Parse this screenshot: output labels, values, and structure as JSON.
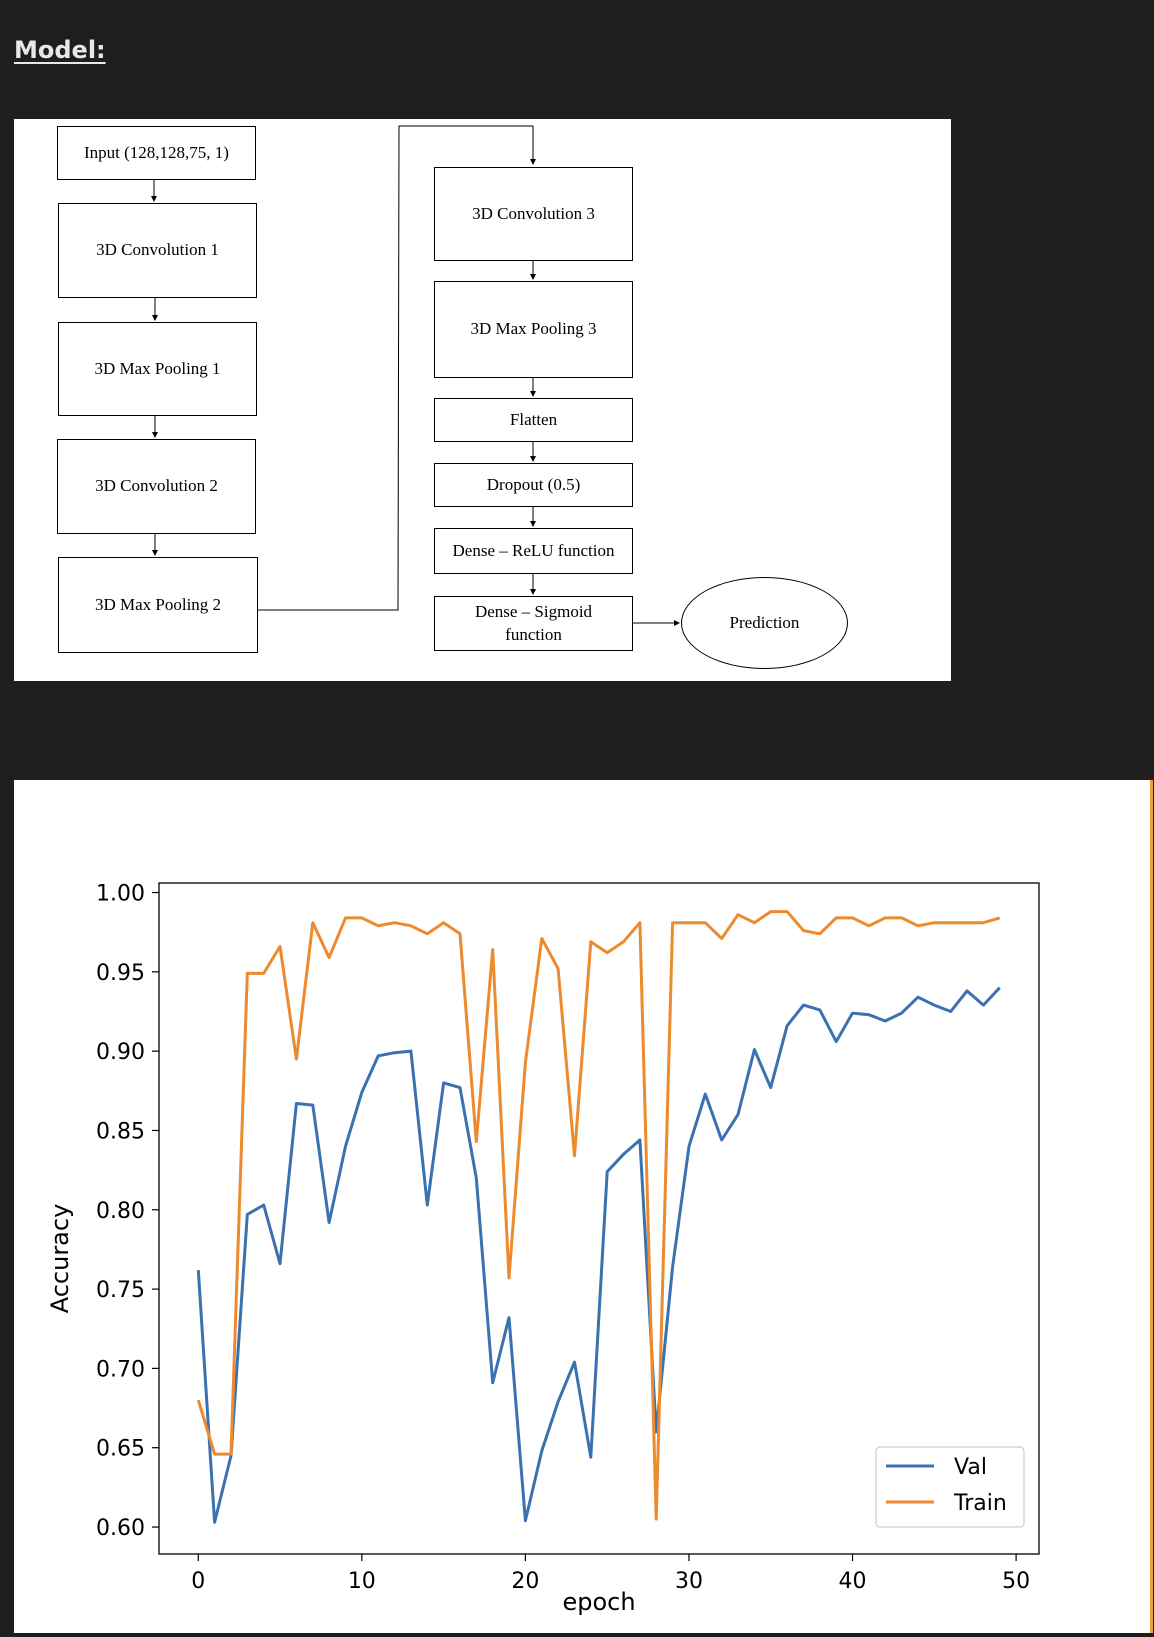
{
  "heading": "Model:",
  "diagram": {
    "input": "Input (128,128,75, 1)",
    "conv1": "3D Convolution 1",
    "pool1": "3D Max Pooling 1",
    "conv2": "3D Convolution 2",
    "pool2": "3D Max Pooling 2",
    "conv3": "3D Convolution 3",
    "pool3": "3D Max Pooling 3",
    "flatten": "Flatten",
    "dropout": "Dropout (0.5)",
    "dense_relu": "Dense – ReLU function",
    "dense_sigmoid_1": "Dense – Sigmoid",
    "dense_sigmoid_2": "function",
    "prediction": "Prediction"
  },
  "chart_data": {
    "type": "line",
    "title": "",
    "xlabel": "epoch",
    "ylabel": "Accuracy",
    "xlim": [
      -2.4,
      51.4
    ],
    "ylim": [
      0.583,
      1.006
    ],
    "xticks": [
      0,
      10,
      20,
      30,
      40,
      50
    ],
    "yticks": [
      0.6,
      0.65,
      0.7,
      0.75,
      0.8,
      0.85,
      0.9,
      0.95,
      1.0
    ],
    "grid": false,
    "legend": "lower-right",
    "x": [
      0,
      1,
      2,
      3,
      4,
      5,
      6,
      7,
      8,
      9,
      10,
      11,
      12,
      13,
      14,
      15,
      16,
      17,
      18,
      19,
      20,
      21,
      22,
      23,
      24,
      25,
      26,
      27,
      28,
      29,
      30,
      31,
      32,
      33,
      34,
      35,
      36,
      37,
      38,
      39,
      40,
      41,
      42,
      43,
      44,
      45,
      46,
      47,
      48,
      49
    ],
    "series": [
      {
        "name": "Val",
        "color": "#3a72b0",
        "values": [
          0.762,
          0.603,
          0.645,
          0.797,
          0.803,
          0.766,
          0.867,
          0.866,
          0.792,
          0.84,
          0.874,
          0.897,
          0.899,
          0.9,
          0.803,
          0.88,
          0.877,
          0.82,
          0.691,
          0.732,
          0.604,
          0.648,
          0.679,
          0.704,
          0.644,
          0.824,
          0.835,
          0.844,
          0.66,
          0.764,
          0.84,
          0.873,
          0.844,
          0.86,
          0.901,
          0.877,
          0.916,
          0.929,
          0.926,
          0.906,
          0.924,
          0.923,
          0.919,
          0.924,
          0.934,
          0.929,
          0.925,
          0.938,
          0.929,
          0.94
        ]
      },
      {
        "name": "Train",
        "color": "#ee8a2e",
        "values": [
          0.68,
          0.646,
          0.646,
          0.949,
          0.949,
          0.966,
          0.895,
          0.981,
          0.959,
          0.984,
          0.984,
          0.979,
          0.981,
          0.979,
          0.974,
          0.981,
          0.974,
          0.843,
          0.964,
          0.757,
          0.893,
          0.971,
          0.952,
          0.834,
          0.969,
          0.962,
          0.969,
          0.981,
          0.605,
          0.981,
          0.981,
          0.981,
          0.971,
          0.986,
          0.981,
          0.988,
          0.988,
          0.976,
          0.974,
          0.984,
          0.984,
          0.979,
          0.984,
          0.984,
          0.979,
          0.981,
          0.981,
          0.981,
          0.981,
          0.984
        ]
      }
    ]
  }
}
